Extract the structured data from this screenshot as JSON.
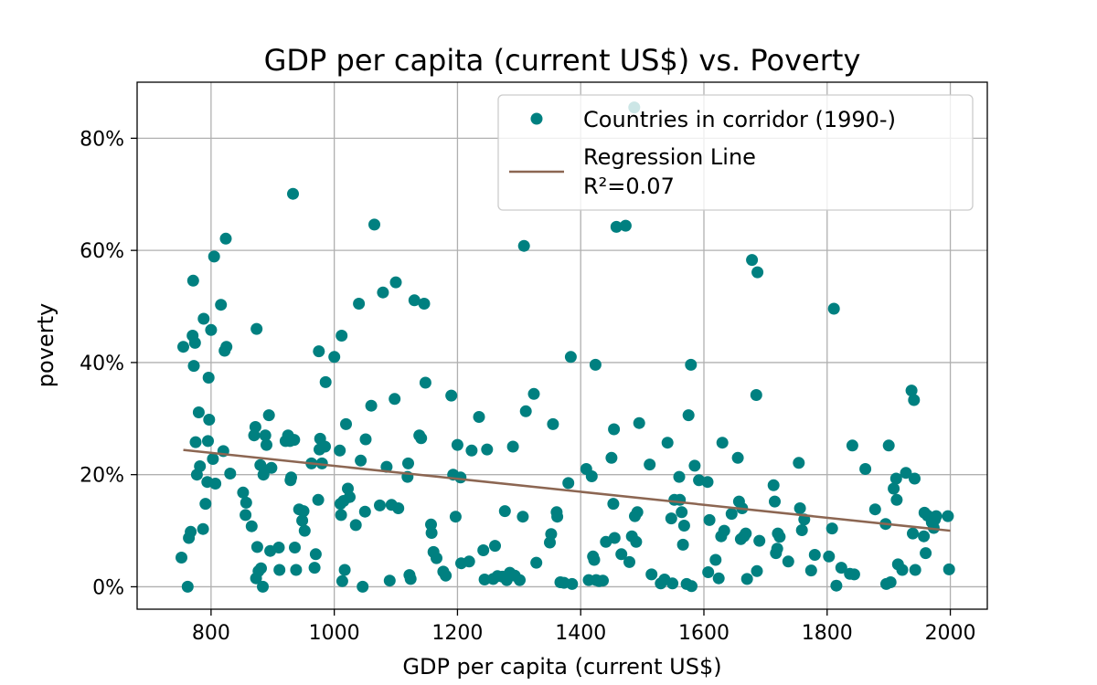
{
  "chart_data": {
    "type": "scatter",
    "title": "GDP per capita (current US$) vs. Poverty",
    "xlabel": "GDP per capita (current US$)",
    "ylabel": "poverty",
    "xlim": [
      680,
      2060
    ],
    "ylim": [
      -0.04,
      0.9
    ],
    "xticks": [
      800,
      1000,
      1200,
      1400,
      1600,
      1800,
      2000
    ],
    "xtick_labels": [
      "800",
      "1000",
      "1200",
      "1400",
      "1600",
      "1800",
      "2000"
    ],
    "yticks": [
      0,
      0.2,
      0.4,
      0.6,
      0.8
    ],
    "ytick_labels": [
      "0%",
      "20%",
      "40%",
      "60%",
      "80%"
    ],
    "grid": true,
    "legend_position": "top-right",
    "legend": {
      "scatter_label": "Countries in corridor (1990-)",
      "line_label_1": "Regression Line",
      "line_label_2": "R²=0.07"
    },
    "colors": {
      "points": "#008080",
      "regression": "#8c6652",
      "grid": "#b0b0b0"
    },
    "regression": {
      "x": [
        755,
        2000
      ],
      "y": [
        0.244,
        0.1
      ]
    },
    "series": [
      {
        "name": "Countries in corridor (1990-)",
        "points": [
          [
            752,
            0.052
          ],
          [
            755,
            0.428
          ],
          [
            762,
            0.0
          ],
          [
            764,
            0.087
          ],
          [
            767,
            0.098
          ],
          [
            770,
            0.448
          ],
          [
            771,
            0.546
          ],
          [
            772,
            0.394
          ],
          [
            774,
            0.435
          ],
          [
            775,
            0.258
          ],
          [
            777,
            0.2
          ],
          [
            780,
            0.311
          ],
          [
            782,
            0.215
          ],
          [
            787,
            0.103
          ],
          [
            788,
            0.478
          ],
          [
            791,
            0.148
          ],
          [
            794,
            0.187
          ],
          [
            795,
            0.26
          ],
          [
            796,
            0.373
          ],
          [
            797,
            0.298
          ],
          [
            800,
            0.458
          ],
          [
            803,
            0.228
          ],
          [
            805,
            0.589
          ],
          [
            807,
            0.184
          ],
          [
            816,
            0.503
          ],
          [
            820,
            0.242
          ],
          [
            822,
            0.421
          ],
          [
            824,
            0.621
          ],
          [
            825,
            0.428
          ],
          [
            831,
            0.202
          ],
          [
            852,
            0.168
          ],
          [
            856,
            0.128
          ],
          [
            857,
            0.15
          ],
          [
            866,
            0.108
          ],
          [
            870,
            0.27
          ],
          [
            872,
            0.285
          ],
          [
            873,
            0.015
          ],
          [
            874,
            0.46
          ],
          [
            875,
            0.071
          ],
          [
            877,
            0.028
          ],
          [
            880,
            0.217
          ],
          [
            881,
            0.033
          ],
          [
            884,
            0.0
          ],
          [
            885,
            0.2
          ],
          [
            887,
            0.208
          ],
          [
            888,
            0.27
          ],
          [
            890,
            0.253
          ],
          [
            894,
            0.306
          ],
          [
            896,
            0.064
          ],
          [
            898,
            0.212
          ],
          [
            910,
            0.07
          ],
          [
            911,
            0.03
          ],
          [
            921,
            0.26
          ],
          [
            925,
            0.27
          ],
          [
            928,
            0.26
          ],
          [
            929,
            0.19
          ],
          [
            930,
            0.195
          ],
          [
            933,
            0.701
          ],
          [
            935,
            0.262
          ],
          [
            936,
            0.07
          ],
          [
            938,
            0.03
          ],
          [
            943,
            0.138
          ],
          [
            948,
            0.118
          ],
          [
            950,
            0.135
          ],
          [
            952,
            0.1
          ],
          [
            963,
            0.22
          ],
          [
            968,
            0.034
          ],
          [
            970,
            0.058
          ],
          [
            974,
            0.155
          ],
          [
            975,
            0.42
          ],
          [
            976,
            0.245
          ],
          [
            977,
            0.264
          ],
          [
            980,
            0.22
          ],
          [
            985,
            0.25
          ],
          [
            986,
            0.365
          ],
          [
            1000,
            0.41
          ],
          [
            1009,
            0.243
          ],
          [
            1010,
            0.148
          ],
          [
            1011,
            0.128
          ],
          [
            1012,
            0.448
          ],
          [
            1013,
            0.01
          ],
          [
            1015,
            0.153
          ],
          [
            1017,
            0.03
          ],
          [
            1019,
            0.29
          ],
          [
            1022,
            0.175
          ],
          [
            1025,
            0.16
          ],
          [
            1035,
            0.11
          ],
          [
            1040,
            0.505
          ],
          [
            1043,
            0.225
          ],
          [
            1046,
            0.0
          ],
          [
            1050,
            0.134
          ],
          [
            1051,
            0.263
          ],
          [
            1060,
            0.323
          ],
          [
            1065,
            0.646
          ],
          [
            1074,
            0.145
          ],
          [
            1079,
            0.525
          ],
          [
            1085,
            0.214
          ],
          [
            1090,
            0.011
          ],
          [
            1093,
            0.146
          ],
          [
            1098,
            0.335
          ],
          [
            1100,
            0.543
          ],
          [
            1104,
            0.14
          ],
          [
            1119,
            0.196
          ],
          [
            1120,
            0.22
          ],
          [
            1122,
            0.021
          ],
          [
            1124,
            0.014
          ],
          [
            1130,
            0.511
          ],
          [
            1138,
            0.27
          ],
          [
            1141,
            0.265
          ],
          [
            1146,
            0.505
          ],
          [
            1148,
            0.364
          ],
          [
            1157,
            0.111
          ],
          [
            1158,
            0.096
          ],
          [
            1161,
            0.062
          ],
          [
            1166,
            0.051
          ],
          [
            1177,
            0.027
          ],
          [
            1181,
            0.02
          ],
          [
            1190,
            0.341
          ],
          [
            1193,
            0.2
          ],
          [
            1197,
            0.125
          ],
          [
            1200,
            0.253
          ],
          [
            1205,
            0.195
          ],
          [
            1206,
            0.042
          ],
          [
            1219,
            0.045
          ],
          [
            1223,
            0.243
          ],
          [
            1235,
            0.303
          ],
          [
            1242,
            0.065
          ],
          [
            1244,
            0.013
          ],
          [
            1248,
            0.245
          ],
          [
            1258,
            0.014
          ],
          [
            1261,
            0.073
          ],
          [
            1265,
            0.019
          ],
          [
            1273,
            0.018
          ],
          [
            1277,
            0.135
          ],
          [
            1280,
            0.012
          ],
          [
            1285,
            0.025
          ],
          [
            1290,
            0.25
          ],
          [
            1293,
            0.02
          ],
          [
            1301,
            0.012
          ],
          [
            1306,
            0.125
          ],
          [
            1308,
            0.608
          ],
          [
            1311,
            0.313
          ],
          [
            1324,
            0.344
          ],
          [
            1328,
            0.043
          ],
          [
            1350,
            0.079
          ],
          [
            1352,
            0.094
          ],
          [
            1355,
            0.29
          ],
          [
            1361,
            0.133
          ],
          [
            1362,
            0.125
          ],
          [
            1367,
            0.008
          ],
          [
            1373,
            0.007
          ],
          [
            1380,
            0.185
          ],
          [
            1384,
            0.41
          ],
          [
            1386,
            0.005
          ],
          [
            1409,
            0.21
          ],
          [
            1413,
            0.012
          ],
          [
            1418,
            0.197
          ],
          [
            1420,
            0.054
          ],
          [
            1422,
            0.048
          ],
          [
            1424,
            0.396
          ],
          [
            1425,
            0.012
          ],
          [
            1430,
            0.01
          ],
          [
            1436,
            0.011
          ],
          [
            1441,
            0.08
          ],
          [
            1450,
            0.23
          ],
          [
            1453,
            0.148
          ],
          [
            1454,
            0.281
          ],
          [
            1455,
            0.087
          ],
          [
            1458,
            0.642
          ],
          [
            1466,
            0.058
          ],
          [
            1473,
            0.644
          ],
          [
            1479,
            0.044
          ],
          [
            1483,
            0.09
          ],
          [
            1487,
            0.855
          ],
          [
            1488,
            0.126
          ],
          [
            1490,
            0.08
          ],
          [
            1492,
            0.133
          ],
          [
            1495,
            0.292
          ],
          [
            1512,
            0.218
          ],
          [
            1515,
            0.022
          ],
          [
            1530,
            0.006
          ],
          [
            1536,
            0.013
          ],
          [
            1541,
            0.257
          ],
          [
            1547,
            0.122
          ],
          [
            1549,
            0.006
          ],
          [
            1552,
            0.155
          ],
          [
            1560,
            0.196
          ],
          [
            1561,
            0.155
          ],
          [
            1564,
            0.133
          ],
          [
            1566,
            0.075
          ],
          [
            1568,
            0.109
          ],
          [
            1572,
            0.005
          ],
          [
            1575,
            0.306
          ],
          [
            1579,
            0.396
          ],
          [
            1580,
            0.001
          ],
          [
            1585,
            0.216
          ],
          [
            1592,
            0.19
          ],
          [
            1606,
            0.187
          ],
          [
            1607,
            0.026
          ],
          [
            1609,
            0.119
          ],
          [
            1619,
            0.048
          ],
          [
            1624,
            0.015
          ],
          [
            1628,
            0.09
          ],
          [
            1630,
            0.257
          ],
          [
            1633,
            0.1
          ],
          [
            1645,
            0.13
          ],
          [
            1655,
            0.23
          ],
          [
            1657,
            0.152
          ],
          [
            1660,
            0.085
          ],
          [
            1662,
            0.14
          ],
          [
            1665,
            0.09
          ],
          [
            1668,
            0.095
          ],
          [
            1670,
            0.014
          ],
          [
            1678,
            0.583
          ],
          [
            1685,
            0.342
          ],
          [
            1686,
            0.028
          ],
          [
            1687,
            0.561
          ],
          [
            1690,
            0.082
          ],
          [
            1713,
            0.181
          ],
          [
            1715,
            0.152
          ],
          [
            1717,
            0.06
          ],
          [
            1719,
            0.068
          ],
          [
            1720,
            0.095
          ],
          [
            1723,
            0.089
          ],
          [
            1737,
            0.045
          ],
          [
            1754,
            0.221
          ],
          [
            1756,
            0.14
          ],
          [
            1759,
            0.101
          ],
          [
            1763,
            0.12
          ],
          [
            1774,
            0.029
          ],
          [
            1780,
            0.057
          ],
          [
            1803,
            0.054
          ],
          [
            1808,
            0.104
          ],
          [
            1811,
            0.496
          ],
          [
            1815,
            0.002
          ],
          [
            1823,
            0.034
          ],
          [
            1837,
            0.023
          ],
          [
            1841,
            0.252
          ],
          [
            1844,
            0.022
          ],
          [
            1862,
            0.21
          ],
          [
            1878,
            0.138
          ],
          [
            1895,
            0.112
          ],
          [
            1896,
            0.005
          ],
          [
            1900,
            0.252
          ],
          [
            1903,
            0.008
          ],
          [
            1908,
            0.175
          ],
          [
            1912,
            0.193
          ],
          [
            1913,
            0.155
          ],
          [
            1915,
            0.04
          ],
          [
            1922,
            0.03
          ],
          [
            1928,
            0.203
          ],
          [
            1937,
            0.35
          ],
          [
            1939,
            0.095
          ],
          [
            1941,
            0.333
          ],
          [
            1942,
            0.193
          ],
          [
            1943,
            0.03
          ],
          [
            1957,
            0.09
          ],
          [
            1958,
            0.132
          ],
          [
            1960,
            0.06
          ],
          [
            1963,
            0.127
          ],
          [
            1970,
            0.115
          ],
          [
            1973,
            0.105
          ],
          [
            1975,
            0.12
          ],
          [
            1977,
            0.126
          ],
          [
            1996,
            0.126
          ],
          [
            1998,
            0.031
          ]
        ]
      }
    ]
  }
}
